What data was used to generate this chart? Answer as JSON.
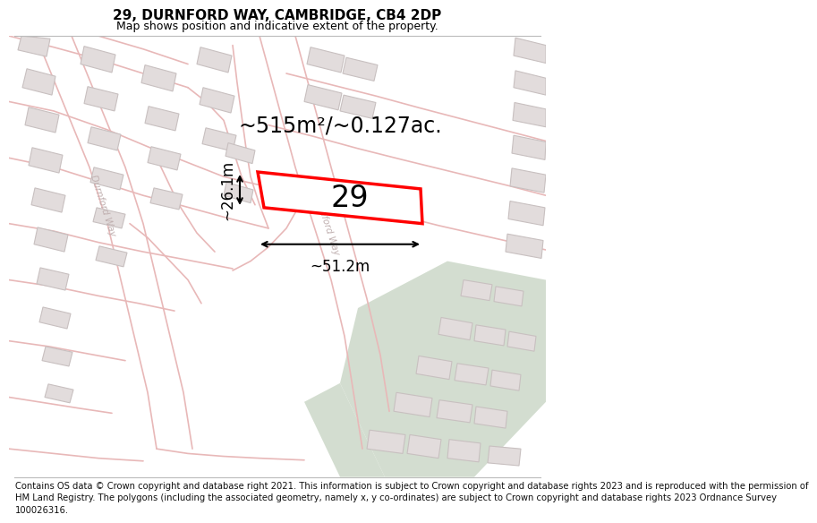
{
  "title_line1": "29, DURNFORD WAY, CAMBRIDGE, CB4 2DP",
  "title_line2": "Map shows position and indicative extent of the property.",
  "footer_text": "Contains OS data © Crown copyright and database right 2021. This information is subject to Crown copyright and database rights 2023 and is reproduced with the permission of\nHM Land Registry. The polygons (including the associated geometry, namely x, y co-ordinates) are subject to Crown copyright and database rights 2023 Ordnance Survey\n100026316.",
  "area_label": "~515m²/~0.127ac.",
  "width_label": "~51.2m",
  "height_label": "~26.1m",
  "number_label": "29",
  "map_bg": "#f2f0f0",
  "plot_color": "#ff0000",
  "road_color": "#e8b8b8",
  "road_outline": "#d09090",
  "building_fill": "#e2dcdc",
  "building_edge": "#c8c0c0",
  "green_fill": "#ccd8c8",
  "road_label_color": "#c0b0b0",
  "title_fontsize": 11,
  "subtitle_fontsize": 9,
  "footer_fontsize": 7.2,
  "number_fontsize": 24,
  "area_fontsize": 17,
  "dim_fontsize": 12
}
